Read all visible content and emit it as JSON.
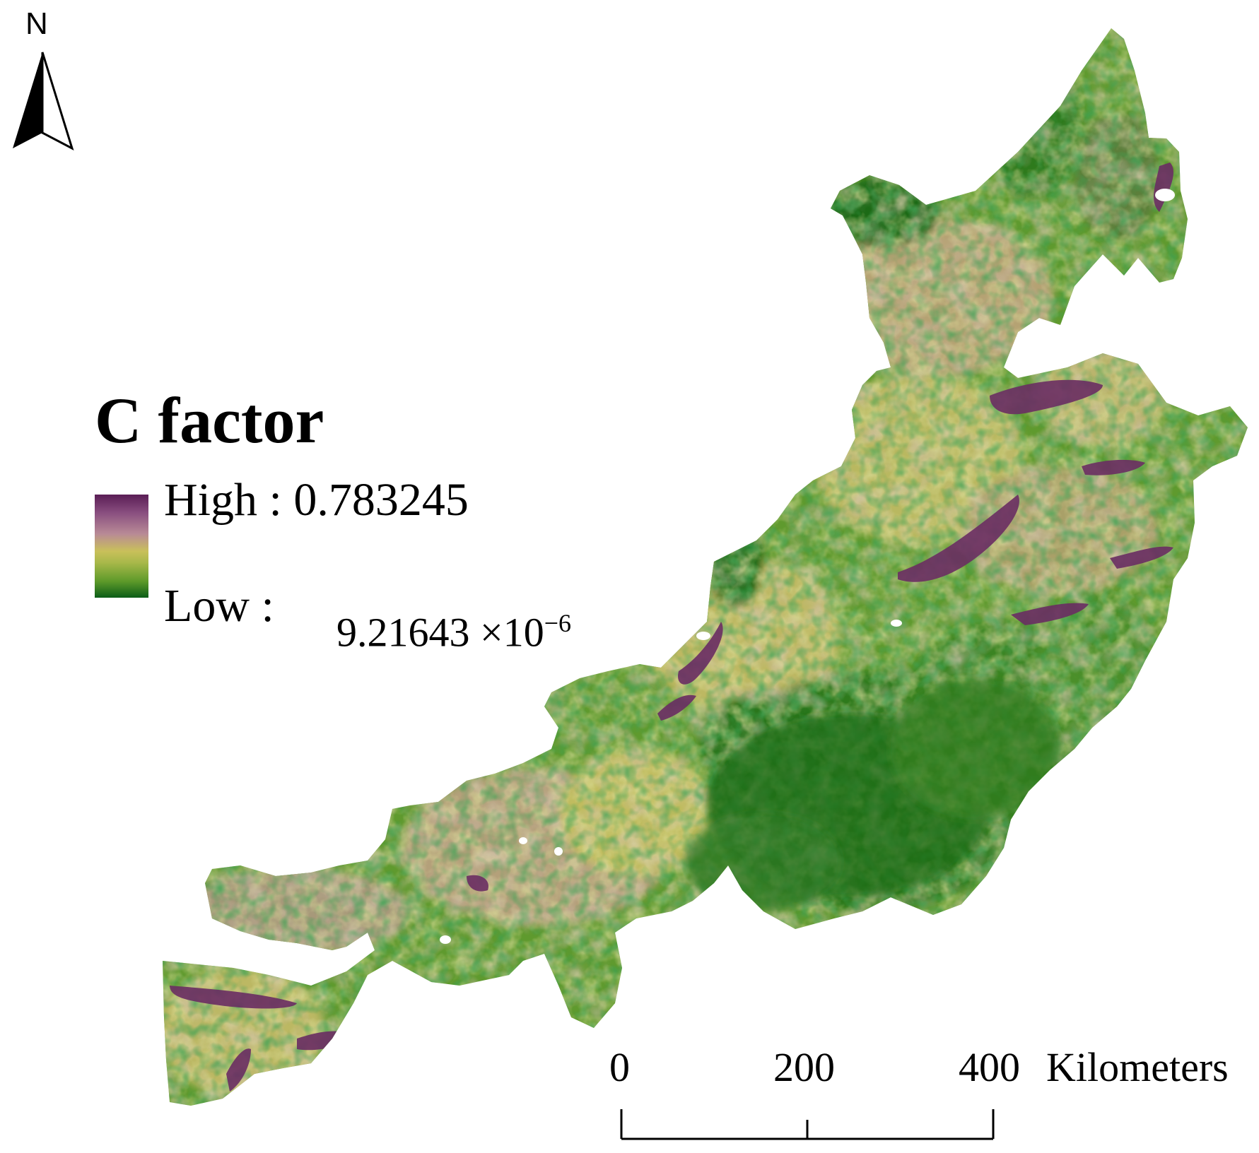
{
  "north_arrow": {
    "label": "N",
    "icon": "north-arrow-icon"
  },
  "legend": {
    "title": "C factor",
    "high_label": "High : 0.783245",
    "low_label": "Low :",
    "low_value_mantissa": "9.21643 ×10",
    "low_value_exponent": "−6",
    "ramp_colors": [
      "#5a1d55",
      "#b88a96",
      "#c9c05a",
      "#5e9a2a",
      "#0b5d17"
    ]
  },
  "scale_bar": {
    "ticks": [
      "0",
      "200",
      "400"
    ],
    "unit": "Kilometers"
  },
  "map_colors": {
    "dark_green": "#0b5d17",
    "green": "#4f8f26",
    "yellow_green": "#b9bd55",
    "tan": "#a98a7a",
    "purple": "#6a2d63"
  }
}
